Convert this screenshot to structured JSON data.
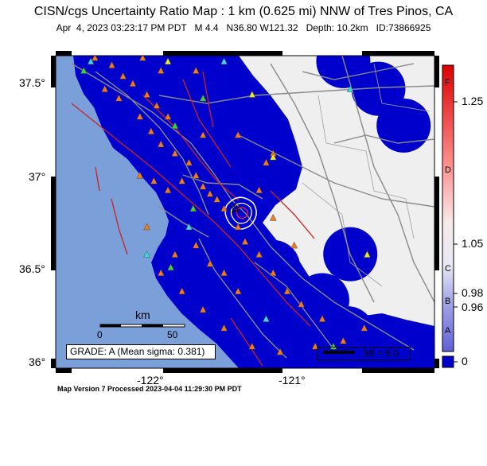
{
  "header": {
    "title": "CISN/cgs Uncertainty Ratio Map : 1 km (0.625 mi) NNW of Tres Pinos, CA",
    "date": "Apr  4, 2023 03:23:17 PM PDT",
    "magnitude": "M 4.4",
    "location": "N36.80 W121.32",
    "depth": "Depth: 10.2km",
    "event_id": "ID:73866925"
  },
  "axes": {
    "lat_ticks": [
      "37.5°",
      "37°",
      "36.5°",
      "36°"
    ],
    "lon_ticks": [
      "-122°",
      "-121°"
    ]
  },
  "scale_bar": {
    "unit": "km",
    "ticks": [
      "0",
      "50"
    ]
  },
  "grade_box": {
    "text": "GRADE: A (Mean sigma: 0.381)"
  },
  "mi_legend": {
    "text": "MI = 6.0"
  },
  "colorbar": {
    "values": [
      "1.25",
      "1.05",
      "0.98",
      "0.96",
      "0"
    ],
    "grades": [
      "F",
      "D",
      "C",
      "B",
      "A"
    ]
  },
  "footer": {
    "text": "Map Version 7 Processed 2023-04-04 11:29:30 PM PDT"
  },
  "colors": {
    "ocean": "#7b9fd8",
    "land": "#efefef",
    "coverage": "#0000cc",
    "faults": "#cc2222",
    "roads": "#8a8a8a"
  },
  "stations": {
    "orange": [
      [
        -122.42,
        37.7
      ],
      [
        -122.32,
        37.62
      ],
      [
        -122.2,
        37.58
      ],
      [
        -122.12,
        37.52
      ],
      [
        -122.05,
        37.48
      ],
      [
        -121.95,
        37.42
      ],
      [
        -121.88,
        37.36
      ],
      [
        -121.8,
        37.3
      ],
      [
        -122.25,
        37.45
      ],
      [
        -122.15,
        37.4
      ],
      [
        -122.0,
        37.3
      ],
      [
        -121.92,
        37.22
      ],
      [
        -121.85,
        37.15
      ],
      [
        -121.75,
        37.1
      ],
      [
        -121.65,
        37.05
      ],
      [
        -121.6,
        36.98
      ],
      [
        -121.55,
        36.92
      ],
      [
        -121.5,
        36.88
      ],
      [
        -121.45,
        36.85
      ],
      [
        -121.4,
        36.8
      ],
      [
        -121.7,
        36.95
      ],
      [
        -121.8,
        36.9
      ],
      [
        -121.9,
        36.95
      ],
      [
        -122.0,
        36.98
      ],
      [
        -121.3,
        36.7
      ],
      [
        -121.25,
        36.62
      ],
      [
        -121.15,
        36.55
      ],
      [
        -121.05,
        36.45
      ],
      [
        -120.95,
        36.35
      ],
      [
        -120.85,
        36.28
      ],
      [
        -121.6,
        36.6
      ],
      [
        -121.75,
        36.55
      ],
      [
        -121.85,
        36.45
      ],
      [
        -121.7,
        36.35
      ],
      [
        -121.55,
        36.25
      ],
      [
        -121.4,
        36.15
      ],
      [
        -121.2,
        36.05
      ],
      [
        -121.0,
        36.02
      ],
      [
        -120.75,
        36.05
      ],
      [
        -120.55,
        36.08
      ],
      [
        -120.4,
        36.15
      ],
      [
        -120.9,
        36.6
      ],
      [
        -121.05,
        36.75
      ],
      [
        -121.15,
        36.9
      ],
      [
        -121.1,
        37.05
      ],
      [
        -121.05,
        37.1
      ],
      [
        -122.35,
        37.8
      ],
      [
        -122.28,
        37.85
      ],
      [
        -121.98,
        37.62
      ],
      [
        -121.85,
        37.55
      ],
      [
        -121.7,
        37.7
      ],
      [
        -121.6,
        37.55
      ],
      [
        -121.4,
        36.45
      ],
      [
        -121.3,
        36.35
      ],
      [
        -120.7,
        36.2
      ],
      [
        -121.5,
        36.5
      ],
      [
        -121.95,
        36.7
      ],
      [
        -121.3,
        37.2
      ],
      [
        -121.55,
        37.2
      ]
    ],
    "green": [
      [
        -122.3,
        37.75
      ],
      [
        -121.85,
        37.72
      ],
      [
        -121.55,
        37.4
      ],
      [
        -121.62,
        36.8
      ],
      [
        -121.78,
        36.48
      ],
      [
        -120.62,
        36.05
      ],
      [
        -122.4,
        37.55
      ],
      [
        -121.75,
        37.25
      ]
    ],
    "cyan": [
      [
        -122.35,
        37.6
      ],
      [
        -121.4,
        37.6
      ],
      [
        -121.65,
        36.7
      ],
      [
        -120.5,
        37.45
      ],
      [
        -121.1,
        36.2
      ],
      [
        -121.95,
        36.55
      ]
    ],
    "yellow": [
      [
        -121.2,
        37.42
      ],
      [
        -121.05,
        37.08
      ],
      [
        -120.38,
        36.55
      ],
      [
        -121.8,
        37.6
      ]
    ]
  },
  "coverage_circles": [
    [
      -120.55,
      37.6
    ],
    [
      -120.3,
      37.45
    ],
    [
      -120.12,
      37.25
    ],
    [
      -120.5,
      36.55
    ],
    [
      -121.05,
      36.48
    ],
    [
      -121.2,
      36.45
    ],
    [
      -121.35,
      36.5
    ],
    [
      -121.05,
      37.05
    ],
    [
      -120.7,
      36.3
    ],
    [
      -120.52,
      36.12
    ],
    [
      -121.25,
      36.2
    ],
    [
      -121.5,
      36.9
    ]
  ],
  "epicenter": [
    -121.32,
    36.8
  ]
}
